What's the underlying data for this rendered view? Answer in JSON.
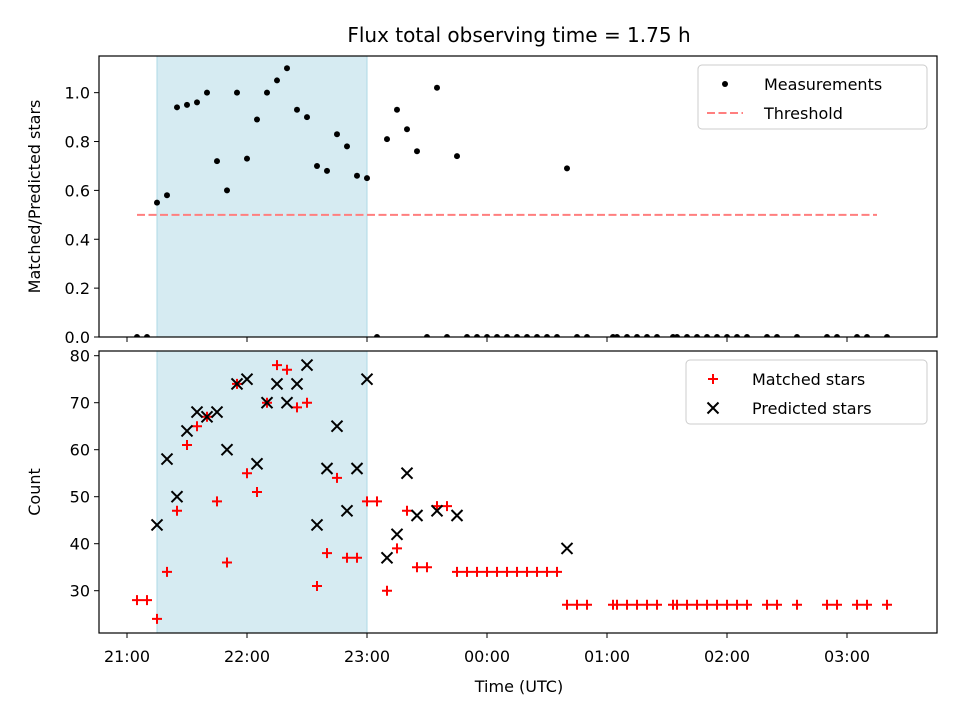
{
  "figure": {
    "title": "Flux total observing time = 1.75 h"
  },
  "x_ticks": [
    "21:00",
    "22:00",
    "23:00",
    "00:00",
    "01:00",
    "02:00",
    "03:00"
  ],
  "chart_data": [
    {
      "type": "scatter",
      "ylabel": "Matched/Predicted stars",
      "xlim": [
        "20:46",
        "03:45"
      ],
      "ylim": [
        0,
        1.15
      ],
      "yticks": [
        "0.0",
        "0.2",
        "0.4",
        "0.6",
        "0.8",
        "1.0"
      ],
      "grid": false,
      "legend_position": "top-right",
      "shaded_interval": {
        "start": "21:15",
        "end": "23:00",
        "color": "#add8e6"
      },
      "series": [
        {
          "name": "Measurements",
          "marker": "dot",
          "color": "#000000",
          "points": [
            [
              "21:05",
              0
            ],
            [
              "21:10",
              0
            ],
            [
              "21:15",
              0.55
            ],
            [
              "21:20",
              0.58
            ],
            [
              "21:25",
              0.94
            ],
            [
              "21:30",
              0.95
            ],
            [
              "21:35",
              0.96
            ],
            [
              "21:40",
              1.0
            ],
            [
              "21:45",
              0.72
            ],
            [
              "21:50",
              0.6
            ],
            [
              "21:55",
              1.0
            ],
            [
              "22:00",
              0.73
            ],
            [
              "22:05",
              0.89
            ],
            [
              "22:10",
              1.0
            ],
            [
              "22:15",
              1.05
            ],
            [
              "22:20",
              1.1
            ],
            [
              "22:25",
              0.93
            ],
            [
              "22:30",
              0.9
            ],
            [
              "22:35",
              0.7
            ],
            [
              "22:40",
              0.68
            ],
            [
              "22:45",
              0.83
            ],
            [
              "22:50",
              0.78
            ],
            [
              "22:55",
              0.66
            ],
            [
              "23:00",
              0.65
            ],
            [
              "23:05",
              0
            ],
            [
              "23:10",
              0.81
            ],
            [
              "23:15",
              0.93
            ],
            [
              "23:20",
              0.85
            ],
            [
              "23:25",
              0.76
            ],
            [
              "23:30",
              0
            ],
            [
              "23:35",
              1.02
            ],
            [
              "23:40",
              0
            ],
            [
              "23:45",
              0.74
            ],
            [
              "23:50",
              0
            ],
            [
              "23:55",
              0
            ],
            [
              "00:00",
              0
            ],
            [
              "00:05",
              0
            ],
            [
              "00:10",
              0
            ],
            [
              "00:15",
              0
            ],
            [
              "00:20",
              0
            ],
            [
              "00:25",
              0
            ],
            [
              "00:30",
              0
            ],
            [
              "00:35",
              0
            ],
            [
              "00:40",
              0.69
            ],
            [
              "00:45",
              0
            ],
            [
              "00:50",
              0
            ],
            [
              "01:03",
              0
            ],
            [
              "01:05",
              0
            ],
            [
              "01:10",
              0
            ],
            [
              "01:15",
              0
            ],
            [
              "01:20",
              0
            ],
            [
              "01:25",
              0
            ],
            [
              "01:33",
              0
            ],
            [
              "01:35",
              0
            ],
            [
              "01:40",
              0
            ],
            [
              "01:45",
              0
            ],
            [
              "01:50",
              0
            ],
            [
              "01:55",
              0
            ],
            [
              "02:00",
              0
            ],
            [
              "02:05",
              0
            ],
            [
              "02:10",
              0
            ],
            [
              "02:20",
              0
            ],
            [
              "02:25",
              0
            ],
            [
              "02:35",
              0
            ],
            [
              "02:50",
              0
            ],
            [
              "02:55",
              0
            ],
            [
              "03:05",
              0
            ],
            [
              "03:10",
              0
            ],
            [
              "03:20",
              0
            ]
          ]
        },
        {
          "name": "Threshold",
          "line_style": "dashed",
          "color": "#ff7f7f",
          "points": [
            [
              "21:05",
              0.5
            ],
            [
              "03:15",
              0.5
            ]
          ]
        }
      ]
    },
    {
      "type": "scatter",
      "xlabel": "Time (UTC)",
      "ylabel": "Count",
      "xlim": [
        "20:46",
        "03:45"
      ],
      "ylim": [
        21,
        81
      ],
      "yticks": [
        "30",
        "40",
        "50",
        "60",
        "70",
        "80"
      ],
      "grid": false,
      "legend_position": "top-right",
      "shaded_interval": {
        "start": "21:15",
        "end": "23:00",
        "color": "#add8e6"
      },
      "series": [
        {
          "name": "Matched stars",
          "marker": "plus",
          "color": "#ff0000",
          "points": [
            [
              "21:05",
              28
            ],
            [
              "21:10",
              28
            ],
            [
              "21:15",
              24
            ],
            [
              "21:20",
              34
            ],
            [
              "21:25",
              47
            ],
            [
              "21:30",
              61
            ],
            [
              "21:35",
              65
            ],
            [
              "21:40",
              67
            ],
            [
              "21:45",
              49
            ],
            [
              "21:50",
              36
            ],
            [
              "21:55",
              74
            ],
            [
              "22:00",
              55
            ],
            [
              "22:05",
              51
            ],
            [
              "22:10",
              70
            ],
            [
              "22:15",
              78
            ],
            [
              "22:20",
              77
            ],
            [
              "22:25",
              69
            ],
            [
              "22:30",
              70
            ],
            [
              "22:35",
              31
            ],
            [
              "22:40",
              38
            ],
            [
              "22:45",
              54
            ],
            [
              "22:50",
              37
            ],
            [
              "22:55",
              37
            ],
            [
              "23:00",
              49
            ],
            [
              "23:05",
              49
            ],
            [
              "23:10",
              30
            ],
            [
              "23:15",
              39
            ],
            [
              "23:20",
              47
            ],
            [
              "23:25",
              35
            ],
            [
              "23:30",
              35
            ],
            [
              "23:35",
              48
            ],
            [
              "23:40",
              48
            ],
            [
              "23:45",
              34
            ],
            [
              "23:50",
              34
            ],
            [
              "23:55",
              34
            ],
            [
              "00:00",
              34
            ],
            [
              "00:05",
              34
            ],
            [
              "00:10",
              34
            ],
            [
              "00:15",
              34
            ],
            [
              "00:20",
              34
            ],
            [
              "00:25",
              34
            ],
            [
              "00:30",
              34
            ],
            [
              "00:35",
              34
            ],
            [
              "00:40",
              27
            ],
            [
              "00:45",
              27
            ],
            [
              "00:50",
              27
            ],
            [
              "01:03",
              27
            ],
            [
              "01:05",
              27
            ],
            [
              "01:10",
              27
            ],
            [
              "01:15",
              27
            ],
            [
              "01:20",
              27
            ],
            [
              "01:25",
              27
            ],
            [
              "01:33",
              27
            ],
            [
              "01:35",
              27
            ],
            [
              "01:40",
              27
            ],
            [
              "01:45",
              27
            ],
            [
              "01:50",
              27
            ],
            [
              "01:55",
              27
            ],
            [
              "02:00",
              27
            ],
            [
              "02:05",
              27
            ],
            [
              "02:10",
              27
            ],
            [
              "02:20",
              27
            ],
            [
              "02:25",
              27
            ],
            [
              "02:35",
              27
            ],
            [
              "02:50",
              27
            ],
            [
              "02:55",
              27
            ],
            [
              "03:05",
              27
            ],
            [
              "03:10",
              27
            ],
            [
              "03:20",
              27
            ]
          ]
        },
        {
          "name": "Predicted stars",
          "marker": "x",
          "color": "#000000",
          "points": [
            [
              "21:15",
              44
            ],
            [
              "21:20",
              58
            ],
            [
              "21:25",
              50
            ],
            [
              "21:30",
              64
            ],
            [
              "21:35",
              68
            ],
            [
              "21:40",
              67
            ],
            [
              "21:45",
              68
            ],
            [
              "21:50",
              60
            ],
            [
              "21:55",
              74
            ],
            [
              "22:00",
              75
            ],
            [
              "22:05",
              57
            ],
            [
              "22:10",
              70
            ],
            [
              "22:15",
              74
            ],
            [
              "22:20",
              70
            ],
            [
              "22:25",
              74
            ],
            [
              "22:30",
              78
            ],
            [
              "22:35",
              44
            ],
            [
              "22:40",
              56
            ],
            [
              "22:45",
              65
            ],
            [
              "22:50",
              47
            ],
            [
              "22:55",
              56
            ],
            [
              "23:00",
              75
            ],
            [
              "23:10",
              37
            ],
            [
              "23:15",
              42
            ],
            [
              "23:20",
              55
            ],
            [
              "23:25",
              46
            ],
            [
              "23:35",
              47
            ],
            [
              "23:45",
              46
            ],
            [
              "00:40",
              39
            ]
          ]
        }
      ]
    }
  ]
}
